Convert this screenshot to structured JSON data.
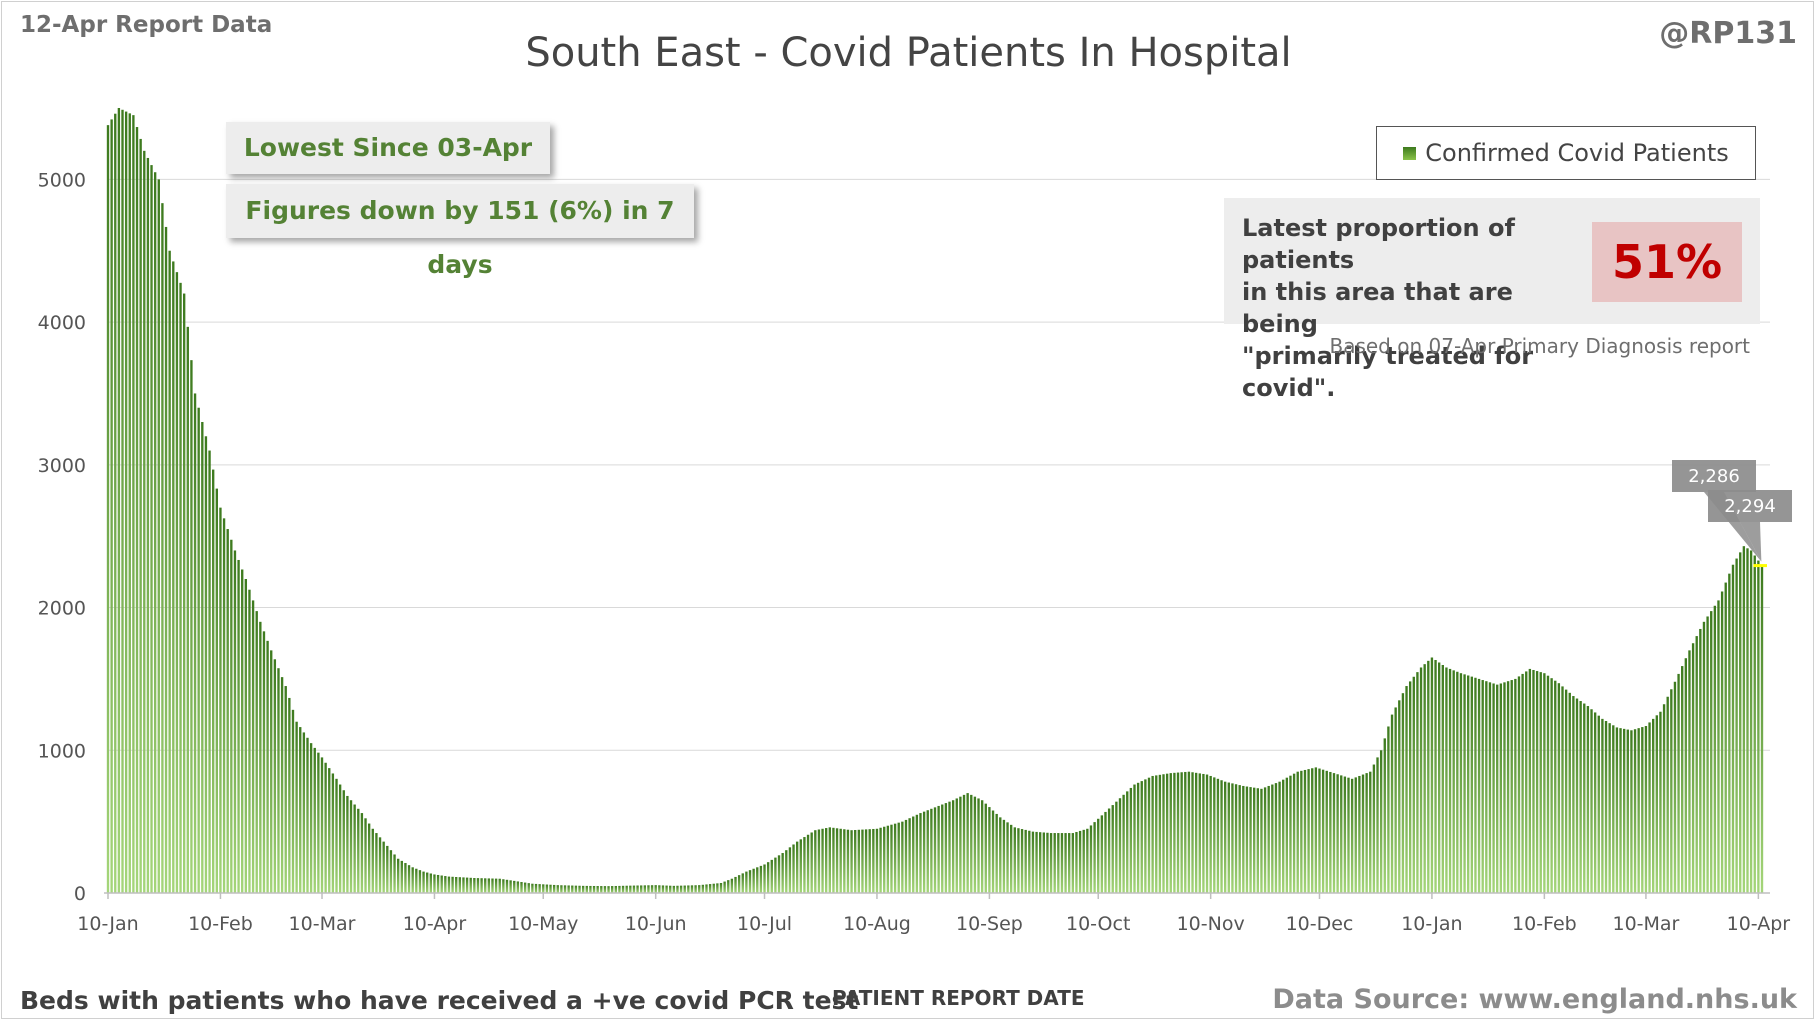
{
  "header": {
    "report_label": "12-Apr Report Data",
    "title": "South East - Covid Patients In Hospital",
    "handle": "@RP131"
  },
  "callouts": {
    "lowest_since": "Lowest Since 03-Apr",
    "change_7_days": "Figures down by 151 (6%) in 7 days"
  },
  "legend": {
    "series_label": "Confirmed Covid Patients",
    "placement": "top-right"
  },
  "proportion": {
    "text_line1": "Latest proportion of patients",
    "text_line2": "in this area that are being",
    "text_line3": "\"primarily treated for covid\".",
    "value": "51%",
    "note": "Based on 07-Apr Primary Diagnosis report"
  },
  "footer": {
    "left": "Beds with patients who have received a +ve covid PCR test",
    "axis_title": "PATIENT REPORT DATE",
    "source": "Data Source: www.england.nhs.uk"
  },
  "colors": {
    "bar_top": "#3d7a1e",
    "bar_bottom": "#a5d67a",
    "highlight": "#ffff00",
    "callout_text": "#548235",
    "pct_text": "#c00000",
    "pct_bg": "#e8c4c4"
  },
  "chart_data": {
    "type": "bar",
    "x_start": "2021-01-10",
    "x_end": "2022-04-11",
    "ylim": [
      0,
      5500
    ],
    "yticks": [
      0,
      1000,
      2000,
      3000,
      4000,
      5000
    ],
    "xtick_labels": [
      "10-Jan",
      "10-Feb",
      "10-Mar",
      "10-Apr",
      "10-May",
      "10-Jun",
      "10-Jul",
      "10-Aug",
      "10-Sep",
      "10-Oct",
      "10-Nov",
      "10-Dec",
      "10-Jan",
      "10-Feb",
      "10-Mar",
      "10-Apr"
    ],
    "xtick_dates": [
      "2021-01-10",
      "2021-02-10",
      "2021-03-10",
      "2021-04-10",
      "2021-05-10",
      "2021-06-10",
      "2021-07-10",
      "2021-08-10",
      "2021-09-10",
      "2021-10-10",
      "2021-11-10",
      "2021-12-10",
      "2022-01-10",
      "2022-02-10",
      "2022-03-10",
      "2022-04-10"
    ],
    "grid": true,
    "series": [
      {
        "name": "Confirmed Covid Patients",
        "points": [
          [
            "2021-01-10",
            5380
          ],
          [
            "2021-01-13",
            5500
          ],
          [
            "2021-01-17",
            5450
          ],
          [
            "2021-01-20",
            5200
          ],
          [
            "2021-01-24",
            5000
          ],
          [
            "2021-01-27",
            4500
          ],
          [
            "2021-01-31",
            4200
          ],
          [
            "2021-02-03",
            3500
          ],
          [
            "2021-02-07",
            3100
          ],
          [
            "2021-02-10",
            2700
          ],
          [
            "2021-02-14",
            2400
          ],
          [
            "2021-02-17",
            2200
          ],
          [
            "2021-02-21",
            1900
          ],
          [
            "2021-02-24",
            1700
          ],
          [
            "2021-02-28",
            1450
          ],
          [
            "2021-03-03",
            1200
          ],
          [
            "2021-03-07",
            1050
          ],
          [
            "2021-03-10",
            950
          ],
          [
            "2021-03-14",
            800
          ],
          [
            "2021-03-17",
            680
          ],
          [
            "2021-03-21",
            560
          ],
          [
            "2021-03-24",
            450
          ],
          [
            "2021-03-28",
            330
          ],
          [
            "2021-03-31",
            240
          ],
          [
            "2021-04-04",
            180
          ],
          [
            "2021-04-07",
            150
          ],
          [
            "2021-04-10",
            130
          ],
          [
            "2021-04-14",
            115
          ],
          [
            "2021-04-21",
            105
          ],
          [
            "2021-04-28",
            100
          ],
          [
            "2021-05-02",
            85
          ],
          [
            "2021-05-07",
            65
          ],
          [
            "2021-05-14",
            55
          ],
          [
            "2021-05-21",
            50
          ],
          [
            "2021-05-28",
            48
          ],
          [
            "2021-06-04",
            52
          ],
          [
            "2021-06-10",
            55
          ],
          [
            "2021-06-15",
            50
          ],
          [
            "2021-06-22",
            55
          ],
          [
            "2021-06-28",
            70
          ],
          [
            "2021-07-01",
            100
          ],
          [
            "2021-07-05",
            150
          ],
          [
            "2021-07-10",
            200
          ],
          [
            "2021-07-15",
            280
          ],
          [
            "2021-07-19",
            360
          ],
          [
            "2021-07-24",
            440
          ],
          [
            "2021-07-28",
            460
          ],
          [
            "2021-08-03",
            440
          ],
          [
            "2021-08-10",
            450
          ],
          [
            "2021-08-17",
            500
          ],
          [
            "2021-08-22",
            560
          ],
          [
            "2021-08-26",
            600
          ],
          [
            "2021-08-31",
            650
          ],
          [
            "2021-09-04",
            700
          ],
          [
            "2021-09-08",
            650
          ],
          [
            "2021-09-13",
            530
          ],
          [
            "2021-09-17",
            460
          ],
          [
            "2021-09-22",
            430
          ],
          [
            "2021-09-27",
            420
          ],
          [
            "2021-10-03",
            420
          ],
          [
            "2021-10-07",
            450
          ],
          [
            "2021-10-10",
            520
          ],
          [
            "2021-10-15",
            640
          ],
          [
            "2021-10-20",
            760
          ],
          [
            "2021-10-25",
            820
          ],
          [
            "2021-10-30",
            840
          ],
          [
            "2021-11-04",
            850
          ],
          [
            "2021-11-09",
            830
          ],
          [
            "2021-11-14",
            780
          ],
          [
            "2021-11-19",
            750
          ],
          [
            "2021-11-24",
            730
          ],
          [
            "2021-11-29",
            780
          ],
          [
            "2021-12-04",
            850
          ],
          [
            "2021-12-09",
            880
          ],
          [
            "2021-12-14",
            840
          ],
          [
            "2021-12-19",
            800
          ],
          [
            "2021-12-24",
            850
          ],
          [
            "2021-12-27",
            1000
          ],
          [
            "2021-12-30",
            1250
          ],
          [
            "2022-01-03",
            1450
          ],
          [
            "2022-01-07",
            1580
          ],
          [
            "2022-01-10",
            1650
          ],
          [
            "2022-01-14",
            1580
          ],
          [
            "2022-01-18",
            1540
          ],
          [
            "2022-01-23",
            1500
          ],
          [
            "2022-01-28",
            1460
          ],
          [
            "2022-02-02",
            1500
          ],
          [
            "2022-02-06",
            1570
          ],
          [
            "2022-02-10",
            1540
          ],
          [
            "2022-02-14",
            1470
          ],
          [
            "2022-02-18",
            1380
          ],
          [
            "2022-02-22",
            1310
          ],
          [
            "2022-02-26",
            1220
          ],
          [
            "2022-03-02",
            1160
          ],
          [
            "2022-03-06",
            1140
          ],
          [
            "2022-03-10",
            1170
          ],
          [
            "2022-03-14",
            1270
          ],
          [
            "2022-03-18",
            1480
          ],
          [
            "2022-03-22",
            1700
          ],
          [
            "2022-03-26",
            1900
          ],
          [
            "2022-03-30",
            2050
          ],
          [
            "2022-04-03",
            2300
          ],
          [
            "2022-04-06",
            2430
          ],
          [
            "2022-04-08",
            2400
          ],
          [
            "2022-04-11",
            2294
          ]
        ],
        "labels": [
          {
            "date": "2022-04-10",
            "text": "2,286"
          },
          {
            "date": "2022-04-11",
            "text": "2,294"
          }
        ]
      }
    ]
  }
}
